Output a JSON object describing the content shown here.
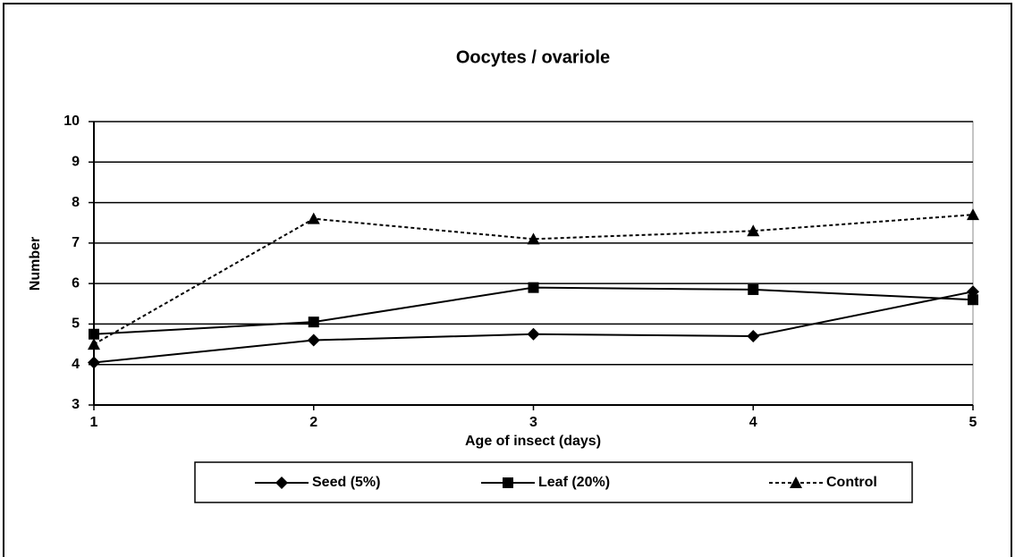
{
  "chart_data": {
    "type": "line",
    "title": "Oocytes / ovariole",
    "x_label": "Age of insect (days)",
    "y_label": "Number",
    "x": [
      1,
      2,
      3,
      4,
      5
    ],
    "xlim": [
      1,
      5
    ],
    "xticks": [
      1,
      2,
      3,
      4,
      5
    ],
    "ylim": [
      3,
      10
    ],
    "yticks": [
      3,
      4,
      5,
      6,
      7,
      8,
      9,
      10
    ],
    "grid": true,
    "legend": "bottom",
    "series": [
      {
        "name": "Seed (5%)",
        "color": "#000000",
        "marker": "diamond",
        "dashed": false,
        "values": [
          4.05,
          4.6,
          4.75,
          4.7,
          5.8
        ]
      },
      {
        "name": "Leaf (20%)",
        "color": "#000000",
        "marker": "square",
        "dashed": false,
        "values": [
          4.75,
          5.05,
          5.9,
          5.85,
          5.6
        ]
      },
      {
        "name": "Control",
        "color": "#000000",
        "marker": "triangle",
        "dashed": true,
        "values": [
          4.5,
          7.6,
          7.1,
          7.3,
          7.7
        ]
      }
    ]
  }
}
